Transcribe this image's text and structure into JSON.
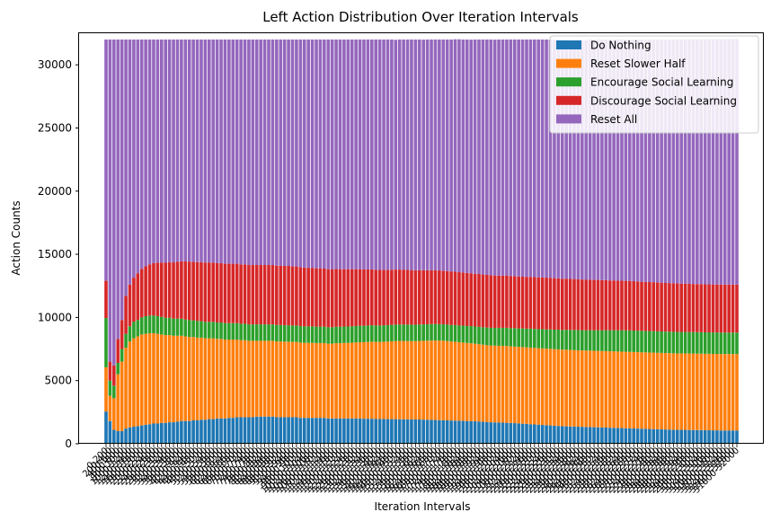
{
  "chart_data": {
    "type": "bar",
    "stacked": true,
    "title": "Left Action Distribution Over Iteration Intervals",
    "xlabel": "Iteration Intervals",
    "ylabel": "Action Counts",
    "ylim": [
      0,
      32500
    ],
    "yticks": [
      0,
      5000,
      10000,
      15000,
      20000,
      25000,
      30000
    ],
    "grid": false,
    "legend_position": "top-right",
    "categories": [
      "0-200",
      "200-400",
      "400-600",
      "600-800",
      "800-1000",
      "1000-1200",
      "1200-1400",
      "1400-1600",
      "1600-1800",
      "1800-2000",
      "2000-2200",
      "2200-2400",
      "2400-2600",
      "2600-2800",
      "2800-3000",
      "3000-3200",
      "3200-3400",
      "3400-3600",
      "3600-3800",
      "3800-4000",
      "4000-4200",
      "4200-4400",
      "4400-4600",
      "4600-4800",
      "4800-5000",
      "5000-5200",
      "5200-5400",
      "5400-5600",
      "5600-5800",
      "5800-6000",
      "6000-6200",
      "6200-6400",
      "6400-6600",
      "6600-6800",
      "6800-7000",
      "7000-7200",
      "7200-7400",
      "7400-7600",
      "7600-7800",
      "7800-8000",
      "8000-8200",
      "8200-8400",
      "8400-8600",
      "8600-8800",
      "8800-9000",
      "9000-9200",
      "9200-9400",
      "9400-9600",
      "9600-9800",
      "9800-10000",
      "10000-10200",
      "10200-10400",
      "10400-10600",
      "10600-10800",
      "10800-11000",
      "11000-11200",
      "11200-11400",
      "11400-11600",
      "11600-11800",
      "11800-12000",
      "12000-12200",
      "12200-12400",
      "12400-12600",
      "12600-12800",
      "12800-13000",
      "13000-13200",
      "13200-13400",
      "13400-13600",
      "13600-13800",
      "13800-14000",
      "14000-14200",
      "14200-14400",
      "14400-14600",
      "14600-14800",
      "14800-15000",
      "15000-15200",
      "15200-15400",
      "15400-15600",
      "15600-15800",
      "15800-16000",
      "16000-16200",
      "16200-16400",
      "16400-16600",
      "16600-16800",
      "16800-17000",
      "17000-17200",
      "17200-17400",
      "17400-17600",
      "17600-17800",
      "17800-18000",
      "18000-18200",
      "18200-18400",
      "18400-18600",
      "18600-18800",
      "18800-19000",
      "19000-19200",
      "19200-19400",
      "19400-19600",
      "19600-19800",
      "19800-20000",
      "20000-20200",
      "20200-20400",
      "20400-20600",
      "20600-20800",
      "20800-21000",
      "21000-21200",
      "21200-21400",
      "21400-21600",
      "21600-21800",
      "21800-22000",
      "22000-22200",
      "22200-22400",
      "22400-22600",
      "22600-22800",
      "22800-23000",
      "23000-23200",
      "23200-23400",
      "23400-23600",
      "23600-23800",
      "23800-24000",
      "24000-24200",
      "24200-24400",
      "24400-24600",
      "24600-24800",
      "24800-25000",
      "25000-25200",
      "25200-25400",
      "25400-25600",
      "25600-25800",
      "25800-26000",
      "26000-26200",
      "26200-26400",
      "26400-26600",
      "26600-26800",
      "26800-27000",
      "27000-27200",
      "27200-27400",
      "27400-27600",
      "27600-27800",
      "27800-28000",
      "28000-28200",
      "28200-28400",
      "28400-28600",
      "28600-28800",
      "28800-29000",
      "29000-29200",
      "29200-29400",
      "29400-29600",
      "29600-29800",
      "29800-30000",
      "30000-30200",
      "30200-30400",
      "30400-30600",
      "30600-30800",
      "30800-31000",
      "31000-31200",
      "31200-31400",
      "31400-31600",
      "31600-31800",
      "31800-32000"
    ],
    "series": [
      {
        "name": "Do Nothing",
        "color": "#1f77b4",
        "values": [
          2550,
          1800,
          1100,
          1000,
          1000,
          1200,
          1300,
          1350,
          1400,
          1450,
          1500,
          1550,
          1600,
          1600,
          1650,
          1650,
          1700,
          1700,
          1750,
          1800,
          1800,
          1800,
          1850,
          1850,
          1900,
          1900,
          1950,
          1950,
          2000,
          2000,
          2000,
          2050,
          2050,
          2100,
          2100,
          2100,
          2100,
          2100,
          2150,
          2150,
          2150,
          2150,
          2150,
          2100,
          2100,
          2100,
          2100,
          2100,
          2100,
          2050,
          2050,
          2050,
          2050,
          2050,
          2050,
          2050,
          2000,
          2000,
          2000,
          2000,
          2000,
          2000,
          2000,
          2000,
          2000,
          1980,
          1980,
          1980,
          1960,
          1960,
          1960,
          1950,
          1950,
          1950,
          1940,
          1940,
          1930,
          1930,
          1920,
          1920,
          1910,
          1900,
          1890,
          1880,
          1870,
          1860,
          1850,
          1840,
          1830,
          1820,
          1810,
          1800,
          1790,
          1780,
          1760,
          1740,
          1720,
          1700,
          1690,
          1680,
          1670,
          1660,
          1650,
          1630,
          1610,
          1590,
          1570,
          1550,
          1530,
          1510,
          1490,
          1470,
          1450,
          1430,
          1410,
          1390,
          1380,
          1370,
          1360,
          1350,
          1340,
          1330,
          1320,
          1310,
          1300,
          1290,
          1280,
          1270,
          1260,
          1250,
          1240,
          1230,
          1220,
          1210,
          1200,
          1190,
          1180,
          1170,
          1160,
          1150,
          1140,
          1130,
          1120,
          1110,
          1100,
          1100,
          1100,
          1090,
          1090,
          1080,
          1080,
          1070,
          1070,
          1060,
          1060,
          1050,
          1050,
          1050,
          1050,
          1050
        ]
      },
      {
        "name": "Reset Slower Half",
        "color": "#ff7f0e",
        "values": [
          3500,
          2000,
          2500,
          4500,
          5500,
          6400,
          6800,
          7000,
          7100,
          7200,
          7200,
          7200,
          7150,
          7100,
          7000,
          6950,
          6900,
          6850,
          6800,
          6750,
          6700,
          6650,
          6600,
          6550,
          6500,
          6450,
          6400,
          6400,
          6300,
          6300,
          6250,
          6200,
          6200,
          6150,
          6100,
          6100,
          6050,
          6050,
          6000,
          6000,
          6000,
          6000,
          6000,
          6000,
          6000,
          5980,
          5980,
          5960,
          5960,
          5960,
          5940,
          5940,
          5940,
          5920,
          5920,
          5920,
          5920,
          5920,
          5960,
          5960,
          5980,
          5980,
          6000,
          6020,
          6040,
          6060,
          6080,
          6100,
          6100,
          6100,
          6120,
          6140,
          6160,
          6180,
          6200,
          6200,
          6200,
          6200,
          6200,
          6220,
          6240,
          6260,
          6280,
          6300,
          6300,
          6300,
          6280,
          6260,
          6240,
          6220,
          6200,
          6180,
          6160,
          6140,
          6120,
          6100,
          6080,
          6080,
          6080,
          6080,
          6080,
          6080,
          6060,
          6060,
          6060,
          6060,
          6060,
          6060,
          6060,
          6060,
          6060,
          6060,
          6060,
          6060,
          6060,
          6060,
          6060,
          6060,
          6050,
          6050,
          6050,
          6050,
          6050,
          6050,
          6050,
          6050,
          6050,
          6050,
          6050,
          6050,
          6050,
          6050,
          6050,
          6050,
          6050,
          6050,
          6050,
          6050,
          6050,
          6050,
          6050,
          6050,
          6050,
          6050,
          6050,
          6050,
          6050,
          6050,
          6050,
          6050,
          6050,
          6050,
          6050,
          6050,
          6050,
          6050,
          6050,
          6050,
          6050,
          6050
        ]
      },
      {
        "name": "Encourage Social Learning",
        "color": "#2ca02c",
        "values": [
          3900,
          1200,
          1000,
          900,
          1000,
          1100,
          1200,
          1300,
          1300,
          1350,
          1400,
          1400,
          1400,
          1400,
          1400,
          1380,
          1380,
          1360,
          1360,
          1350,
          1340,
          1340,
          1320,
          1320,
          1300,
          1300,
          1300,
          1300,
          1300,
          1300,
          1300,
          1300,
          1300,
          1300,
          1300,
          1300,
          1300,
          1300,
          1300,
          1300,
          1300,
          1300,
          1300,
          1300,
          1300,
          1300,
          1300,
          1300,
          1300,
          1300,
          1300,
          1300,
          1300,
          1300,
          1300,
          1300,
          1300,
          1300,
          1300,
          1300,
          1300,
          1300,
          1300,
          1300,
          1300,
          1300,
          1300,
          1300,
          1300,
          1300,
          1300,
          1300,
          1300,
          1300,
          1300,
          1300,
          1300,
          1300,
          1300,
          1300,
          1300,
          1300,
          1300,
          1300,
          1300,
          1300,
          1300,
          1300,
          1320,
          1320,
          1340,
          1340,
          1360,
          1360,
          1380,
          1380,
          1400,
          1400,
          1400,
          1420,
          1420,
          1440,
          1440,
          1460,
          1460,
          1480,
          1480,
          1500,
          1500,
          1500,
          1520,
          1520,
          1540,
          1540,
          1560,
          1560,
          1580,
          1580,
          1600,
          1600,
          1600,
          1600,
          1620,
          1620,
          1640,
          1640,
          1660,
          1660,
          1680,
          1680,
          1700,
          1700,
          1700,
          1700,
          1700,
          1700,
          1700,
          1700,
          1700,
          1700,
          1700,
          1700,
          1700,
          1700,
          1700,
          1700,
          1700,
          1700,
          1700,
          1700,
          1700,
          1700,
          1700,
          1700,
          1700,
          1700,
          1700,
          1700,
          1700,
          1700
        ]
      },
      {
        "name": "Discourage Social Learning",
        "color": "#d62728",
        "values": [
          2950,
          1500,
          1600,
          1900,
          2300,
          3000,
          3300,
          3500,
          3700,
          3850,
          3950,
          4050,
          4150,
          4250,
          4300,
          4350,
          4400,
          4450,
          4500,
          4550,
          4600,
          4620,
          4640,
          4660,
          4680,
          4700,
          4700,
          4700,
          4700,
          4700,
          4700,
          4700,
          4700,
          4700,
          4700,
          4700,
          4700,
          4700,
          4700,
          4700,
          4700,
          4700,
          4700,
          4700,
          4700,
          4700,
          4700,
          4680,
          4680,
          4660,
          4660,
          4640,
          4640,
          4620,
          4620,
          4600,
          4600,
          4580,
          4580,
          4560,
          4540,
          4540,
          4520,
          4500,
          4480,
          4460,
          4440,
          4420,
          4410,
          4400,
          4390,
          4380,
          4370,
          4360,
          4350,
          4340,
          4330,
          4320,
          4310,
          4300,
          4290,
          4280,
          4270,
          4260,
          4250,
          4240,
          4240,
          4240,
          4230,
          4220,
          4210,
          4200,
          4190,
          4180,
          4180,
          4180,
          4170,
          4160,
          4150,
          4140,
          4140,
          4140,
          4130,
          4120,
          4110,
          4100,
          4100,
          4100,
          4100,
          4100,
          4100,
          4100,
          4090,
          4080,
          4070,
          4060,
          4050,
          4040,
          4030,
          4020,
          4010,
          4000,
          4000,
          3990,
          3980,
          3970,
          3960,
          3950,
          3940,
          3930,
          3920,
          3920,
          3920,
          3910,
          3900,
          3890,
          3880,
          3880,
          3880,
          3870,
          3860,
          3850,
          3850,
          3850,
          3840,
          3830,
          3830,
          3820,
          3810,
          3810,
          3810,
          3800,
          3800,
          3800,
          3800,
          3800,
          3800,
          3800,
          3800,
          3800
        ]
      },
      {
        "name": "Reset All",
        "color": "#9467bd",
        "values": [
          19100,
          25500,
          25800,
          23700,
          22200,
          20300,
          19400,
          18850,
          18500,
          18150,
          17950,
          17800,
          17700,
          17650,
          17650,
          17670,
          17620,
          17640,
          17590,
          17550,
          17560,
          17590,
          17590,
          17620,
          17620,
          17650,
          17650,
          17650,
          17700,
          17700,
          17750,
          17750,
          17750,
          17750,
          17800,
          17800,
          17850,
          17850,
          17850,
          17850,
          17850,
          17850,
          17850,
          17900,
          17900,
          17920,
          17920,
          17960,
          17960,
          18030,
          18050,
          18070,
          18070,
          18110,
          18110,
          18130,
          18180,
          18200,
          18160,
          18180,
          18180,
          18180,
          18180,
          18180,
          18180,
          18200,
          18200,
          18200,
          18230,
          18240,
          18230,
          18230,
          18220,
          18190,
          18210,
          18220,
          18240,
          18250,
          18270,
          18260,
          18250,
          18260,
          18260,
          18260,
          18280,
          18300,
          18330,
          18360,
          18400,
          18440,
          18440,
          18480,
          18490,
          18540,
          18560,
          18600,
          18630,
          18660,
          18670,
          18680,
          18690,
          18680,
          18720,
          18730,
          18760,
          18770,
          18790,
          18790,
          18810,
          18830,
          18830,
          18850,
          18850,
          18870,
          18870,
          18890,
          18880,
          18890,
          18900,
          18930,
          18950,
          18970,
          19010,
          19020,
          19030,
          19040,
          19050,
          19060,
          19070,
          19090,
          19090,
          19100,
          19110,
          19130,
          19150,
          19170,
          19190,
          19200,
          19210,
          19230,
          19250,
          19270,
          19280,
          19290,
          19310,
          19320,
          19330,
          19350,
          19360,
          19380,
          19380,
          19400,
          19410,
          19420,
          19420,
          19430,
          19430,
          19440,
          19440,
          19440
        ]
      }
    ]
  }
}
